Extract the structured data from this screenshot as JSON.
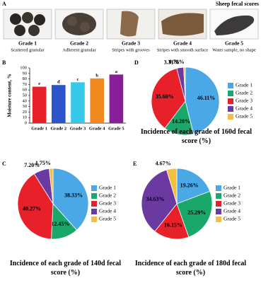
{
  "panel_a": {
    "label": "A",
    "title": "Sheep fecal scores",
    "items": [
      {
        "grade": "Grade 1",
        "description": "Scattered granular"
      },
      {
        "grade": "Grade 2",
        "description": "Adherent granular"
      },
      {
        "grade": "Grade 3",
        "description": "Stripes with grooves"
      },
      {
        "grade": "Grade 4",
        "description": "Stripes with smooth surface"
      },
      {
        "grade": "Grade 5",
        "description": "Water sample, no shape"
      }
    ]
  },
  "chart_data": [
    {
      "type": "bar",
      "panel_label": "B",
      "y_label": "Moisture content, %",
      "categories": [
        "Grade 1",
        "Grade 2",
        "Grade 3",
        "Grade 4",
        "Grade 5"
      ],
      "values": [
        66,
        69,
        74,
        81,
        88
      ],
      "significance_letters": [
        "e",
        "d",
        "c",
        "b",
        "a"
      ],
      "colors": [
        "#e8202a",
        "#2b55c8",
        "#35c8e8",
        "#f08a1e",
        "#8a1e9a"
      ],
      "ylim": [
        0,
        100
      ],
      "yticks": [
        0,
        10,
        20,
        30,
        40,
        50,
        60,
        70,
        80,
        90,
        100
      ]
    },
    {
      "type": "pie",
      "panel_label": "D",
      "title": "Incidence of each grade of 160d fecal score (%)",
      "categories": [
        "Grade 1",
        "Grade 2",
        "Grade 3",
        "Grade 4",
        "Grade 5"
      ],
      "values": [
        46.11,
        14.2,
        35.6,
        3.31,
        0.78
      ],
      "value_labels": [
        "46.11%",
        "14.20%",
        "35.60%",
        "3.31%",
        "0.78%"
      ],
      "colors": [
        "#4aa8e6",
        "#1aa86a",
        "#e8202a",
        "#6a3aa0",
        "#f2c040"
      ]
    },
    {
      "type": "pie",
      "panel_label": "C",
      "title": "Incidence of each grade of 140d fecal score (%)",
      "categories": [
        "Grade 1",
        "Grade 2",
        "Grade 3",
        "Grade 4",
        "Grade 5"
      ],
      "values": [
        38.33,
        12.45,
        40.27,
        7.2,
        1.75
      ],
      "value_labels": [
        "38.33%",
        "12.45%",
        "40.27%",
        "7.20%",
        "1.75%"
      ],
      "colors": [
        "#4aa8e6",
        "#1aa86a",
        "#e8202a",
        "#6a3aa0",
        "#f2c040"
      ]
    },
    {
      "type": "pie",
      "panel_label": "E",
      "title": "Incidence of each grade of 180d fecal score (%)",
      "categories": [
        "Grade 1",
        "Grade 2",
        "Grade 3",
        "Grade 4",
        "Grade 5"
      ],
      "values": [
        19.26,
        25.29,
        16.15,
        34.63,
        4.67
      ],
      "value_labels": [
        "19.26%",
        "25.29%",
        "16.15%",
        "34.63%",
        "4.67%"
      ],
      "colors": [
        "#4aa8e6",
        "#1aa86a",
        "#e8202a",
        "#6a3aa0",
        "#f2c040"
      ]
    }
  ]
}
